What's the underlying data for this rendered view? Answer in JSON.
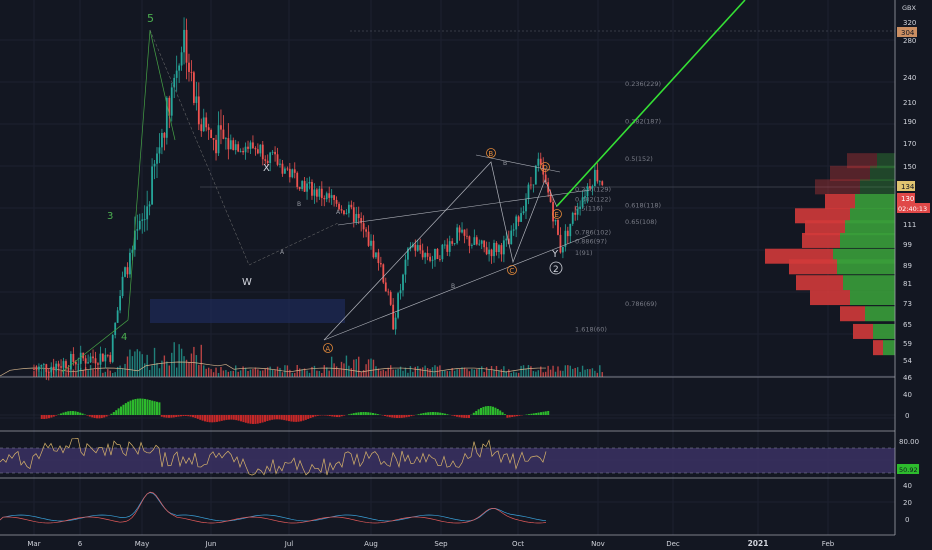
{
  "chart_data": {
    "type": "candlestick",
    "currency": "GBX",
    "price_axis": {
      "ticks": [
        "320",
        "280",
        "240",
        "210",
        "190",
        "170",
        "150",
        "134",
        "130",
        "111",
        "99",
        "89",
        "81",
        "73",
        "65",
        "59",
        "54",
        "46"
      ],
      "current_price": "304",
      "last_price": "134",
      "price_label_2": "130",
      "countdown": "02:40:13"
    },
    "time_axis": {
      "labels": [
        "Mar",
        "6",
        "May",
        "Jun",
        "Jul",
        "Aug",
        "Sep",
        "Oct",
        "Nov",
        "Dec",
        "2021",
        "Feb"
      ]
    },
    "close_path": [
      [
        "Mar 1",
        48
      ],
      [
        "Mar 15",
        50
      ],
      [
        "Apr 1",
        52
      ],
      [
        "Apr 6",
        78
      ],
      [
        "Apr 15",
        110
      ],
      [
        "Apr 22",
        175
      ],
      [
        "May 1",
        300
      ],
      [
        "May 5",
        210
      ],
      [
        "May 12",
        170
      ],
      [
        "May 20",
        165
      ],
      [
        "Jun 1",
        160
      ],
      [
        "Jun 10",
        145
      ],
      [
        "Jun 20",
        130
      ],
      [
        "Jul 1",
        120
      ],
      [
        "Jul 10",
        110
      ],
      [
        "Jul 20",
        85
      ],
      [
        "Jul 25",
        62
      ],
      [
        "Aug 1",
        95
      ],
      [
        "Aug 10",
        88
      ],
      [
        "Aug 20",
        100
      ],
      [
        "Sep 1",
        92
      ],
      [
        "Sep 10",
        95
      ],
      [
        "Sep 22",
        148
      ],
      [
        "Sep 27",
        120
      ],
      [
        "Oct 1",
        93
      ],
      [
        "Oct 8",
        118
      ],
      [
        "Oct 15",
        140
      ],
      [
        "Oct 18",
        134
      ]
    ],
    "fib_levels": [
      {
        "label": "0.236(229)",
        "value": 229
      },
      {
        "label": "0.382(187)",
        "value": 187
      },
      {
        "label": "0.5(152)",
        "value": 152
      },
      {
        "label": "0.236(129)",
        "value": 129
      },
      {
        "label": "0.382(122)",
        "value": 122
      },
      {
        "label": "0.5(116)",
        "value": 116
      },
      {
        "label": "0.618(118)",
        "value": 118
      },
      {
        "label": "0.65(108)",
        "value": 108
      },
      {
        "label": "0.786(102)",
        "value": 102
      },
      {
        "label": "0.886(97)",
        "value": 97
      },
      {
        "label": "1(91)",
        "value": 91
      },
      {
        "label": "0.786(69)",
        "value": 69
      },
      {
        "label": "1.618(60)",
        "value": 60
      }
    ],
    "wave_labels": [
      "5",
      "3",
      "4",
      "X",
      "W",
      "Y",
      "2",
      "A",
      "B",
      "C",
      "D",
      "E"
    ],
    "volume_profile": [
      {
        "price": 150,
        "buy": 18,
        "sell": 30
      },
      {
        "price": 140,
        "buy": 25,
        "sell": 40
      },
      {
        "price": 130,
        "buy": 35,
        "sell": 45
      },
      {
        "price": 120,
        "buy": 40,
        "sell": 30
      },
      {
        "price": 111,
        "buy": 45,
        "sell": 55
      },
      {
        "price": 104,
        "buy": 50,
        "sell": 40
      },
      {
        "price": 97,
        "buy": 55,
        "sell": 38
      },
      {
        "price": 89,
        "buy": 62,
        "sell": 68
      },
      {
        "price": 84,
        "buy": 58,
        "sell": 48
      },
      {
        "price": 77,
        "buy": 52,
        "sell": 47
      },
      {
        "price": 71,
        "buy": 45,
        "sell": 40
      },
      {
        "price": 65,
        "buy": 30,
        "sell": 25
      },
      {
        "price": 59,
        "buy": 22,
        "sell": 20
      },
      {
        "price": 54,
        "buy": 12,
        "sell": 10
      }
    ],
    "macd_axis": [
      "40",
      "0"
    ],
    "rsi_axis": [
      "80.00"
    ],
    "rsi_current": "50.92",
    "stoch_axis": [
      "40",
      "20",
      "0"
    ]
  },
  "colors": {
    "background": "#131722",
    "bull": "#26a69a",
    "bear": "#ef5350",
    "projection": "#35e035",
    "fib_text": "#787b86",
    "rsi_band": "#3b3163"
  }
}
